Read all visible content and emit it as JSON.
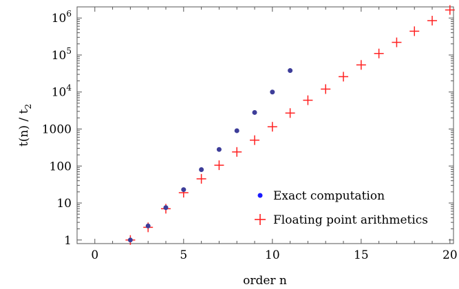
{
  "chart_data": {
    "type": "scatter",
    "xlabel": "order n",
    "ylabel": "t(n) / t",
    "ylabel_subscript": "2",
    "xlim": [
      -1,
      20.2
    ],
    "ylim": [
      0.8,
      2000000
    ],
    "yscale": "log",
    "grid": false,
    "legend_position": "bottom-right",
    "x_ticks": [
      0,
      5,
      10,
      15,
      20
    ],
    "x_tick_labels": [
      "0",
      "5",
      "10",
      "15",
      "20"
    ],
    "y_ticks": [
      {
        "value": 1,
        "label": "1"
      },
      {
        "value": 10,
        "label": "10"
      },
      {
        "value": 100,
        "label": "100"
      },
      {
        "value": 1000,
        "label": "1000"
      },
      {
        "value": 10000,
        "mantissa": "10",
        "exponent": "4"
      },
      {
        "value": 100000,
        "mantissa": "10",
        "exponent": "5"
      },
      {
        "value": 1000000,
        "mantissa": "10",
        "exponent": "6"
      }
    ],
    "series": [
      {
        "name": "Exact computation",
        "marker": "dot",
        "color": "#3d3d99",
        "legend_color": "#1a1aff",
        "x": [
          2,
          3,
          4,
          5,
          6,
          7,
          8,
          9,
          10,
          11
        ],
        "y": [
          1,
          2.4,
          7.5,
          23,
          80,
          280,
          900,
          2800,
          10000,
          38000
        ]
      },
      {
        "name": "Floating point arithmetics",
        "marker": "plus",
        "color": "#ff2020",
        "x": [
          2,
          3,
          4,
          5,
          6,
          7,
          8,
          9,
          10,
          11,
          12,
          13,
          14,
          15,
          16,
          17,
          18,
          19,
          20
        ],
        "y": [
          1,
          2.2,
          7,
          19,
          45,
          105,
          240,
          500,
          1150,
          2700,
          6000,
          12000,
          26000,
          54000,
          110000,
          220000,
          440000,
          850000,
          1650000
        ]
      }
    ]
  }
}
